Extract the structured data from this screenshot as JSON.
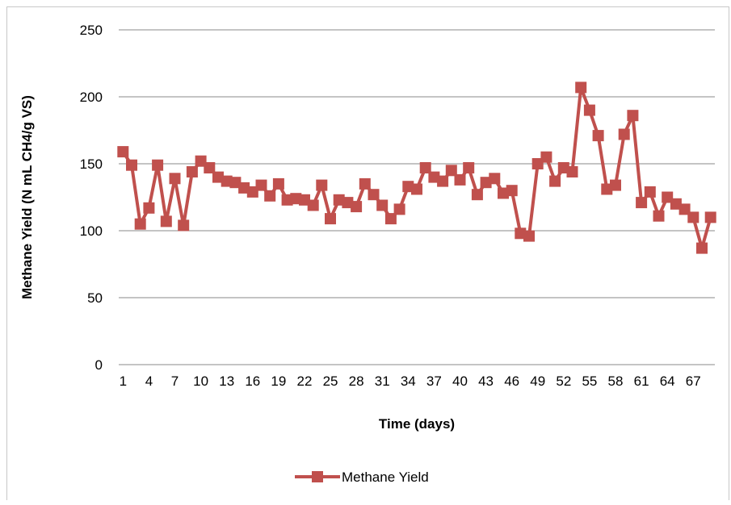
{
  "chart_data": {
    "type": "line",
    "title": "",
    "xlabel": "Time (days)",
    "ylabel": "Methane Yield (N mL CH4/g VS)",
    "ylim": [
      0,
      250
    ],
    "yticks": [
      0,
      50,
      100,
      150,
      200,
      250
    ],
    "xticks": [
      1,
      4,
      7,
      10,
      13,
      16,
      19,
      22,
      25,
      28,
      31,
      34,
      37,
      40,
      43,
      46,
      49,
      52,
      55,
      58,
      61,
      64,
      67
    ],
    "x_count": 69,
    "grid": "horizontal",
    "legend_position": "bottom",
    "series": [
      {
        "name": "Methane Yield",
        "color": "#c0504d",
        "marker": "square",
        "values": [
          159,
          149,
          105,
          117,
          149,
          107,
          139,
          104,
          144,
          152,
          147,
          140,
          137,
          136,
          132,
          129,
          134,
          126,
          135,
          123,
          124,
          123,
          119,
          134,
          109,
          123,
          121,
          118,
          135,
          127,
          119,
          109,
          116,
          133,
          131,
          147,
          140,
          137,
          145,
          138,
          147,
          127,
          136,
          139,
          128,
          130,
          98,
          96,
          150,
          155,
          137,
          147,
          144,
          207,
          190,
          171,
          131,
          134,
          172,
          186,
          121,
          129,
          111,
          125,
          120,
          116,
          110,
          87,
          110
        ]
      }
    ]
  }
}
